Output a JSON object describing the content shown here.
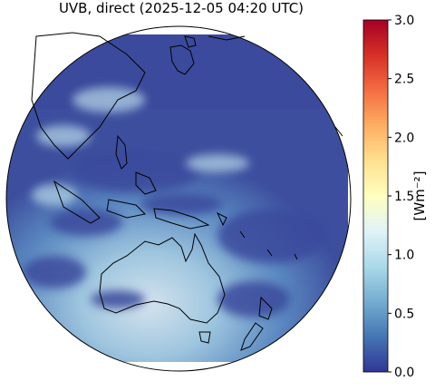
{
  "title": "UVB, direct (2025-12-05 04:20 UTC)",
  "colorbar": {
    "label": "[Wm⁻²]",
    "clim": [
      0,
      3
    ],
    "ticks": [
      {
        "value": 0,
        "label": "0.0"
      },
      {
        "value": 0.5,
        "label": "0.5"
      },
      {
        "value": 1,
        "label": "1.0"
      },
      {
        "value": 1.5,
        "label": "1.5"
      },
      {
        "value": 2,
        "label": "2.0"
      },
      {
        "value": 2.5,
        "label": "2.5"
      },
      {
        "value": 3,
        "label": "3.0"
      }
    ],
    "colormap": "RdYlBu_r",
    "colors": [
      "#313695",
      "#4575b4",
      "#74add1",
      "#abd9e9",
      "#e0f3f8",
      "#ffffbf",
      "#fee090",
      "#fdae61",
      "#f46d43",
      "#d73027",
      "#a50026"
    ]
  }
}
